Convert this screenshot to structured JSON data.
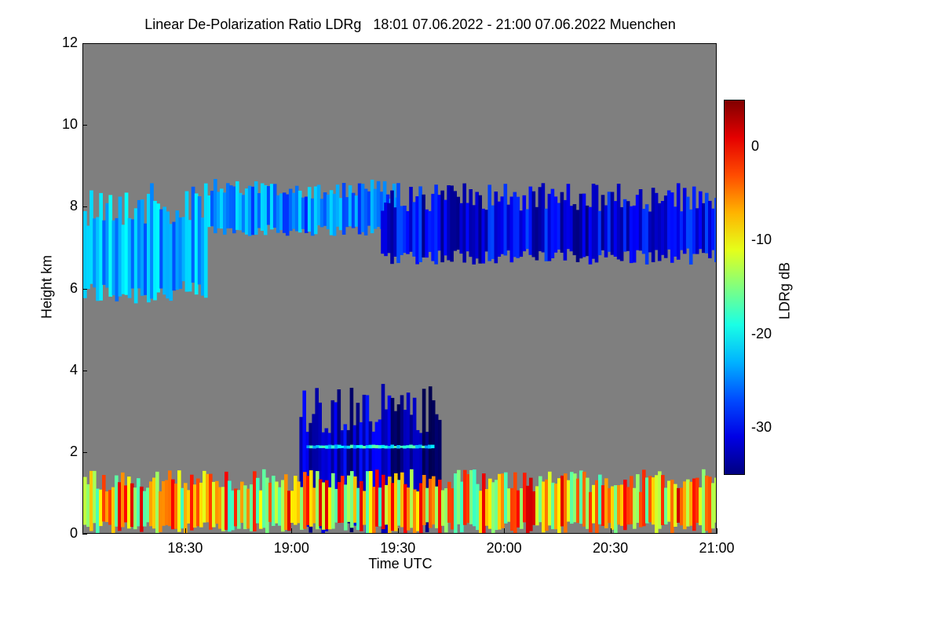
{
  "title": "Linear De-Polarization Ratio LDRg   18:01 07.06.2022 - 21:00 07.06.2022 Muenchen",
  "chart_data": {
    "type": "heatmap",
    "title": "Linear De-Polarization Ratio LDRg   18:01 07.06.2022 - 21:00 07.06.2022 Muenchen",
    "xlabel": "Time UTC",
    "ylabel": "Height km",
    "colorbar_label": "LDRg dB",
    "x_range": [
      "18:01",
      "21:00"
    ],
    "x_ticks": [
      "18:30",
      "19:00",
      "19:30",
      "20:00",
      "20:30",
      "21:00"
    ],
    "y_range": [
      0,
      12
    ],
    "y_ticks": [
      "0",
      "2",
      "4",
      "6",
      "8",
      "10",
      "12"
    ],
    "colorbar_range": [
      -35,
      5
    ],
    "colorbar_ticks": [
      "0",
      "-10",
      "-20",
      "-30"
    ],
    "colormap": "jet",
    "background_color": "#7f7f7f",
    "features": [
      {
        "description": "cirrus cloud",
        "time": [
          "18:01",
          "18:36"
        ],
        "height_km": [
          5.6,
          8.6
        ],
        "ldr_db": -23
      },
      {
        "description": "cirrus cloud",
        "time": [
          "18:36",
          "19:30"
        ],
        "height_km": [
          7.3,
          8.7
        ],
        "ldr_db": -25
      },
      {
        "description": "cirrus cloud",
        "time": [
          "19:25",
          "21:00"
        ],
        "height_km": [
          6.6,
          8.6
        ],
        "ldr_db": -31
      },
      {
        "description": "convective cloud",
        "time": [
          "19:02",
          "19:42"
        ],
        "height_km": [
          0,
          3.7
        ],
        "ldr_db": -33
      },
      {
        "description": "melting layer",
        "time": [
          "19:04",
          "19:40"
        ],
        "height_km": [
          2.1,
          2.2
        ],
        "ldr_db": -20
      },
      {
        "description": "boundary layer",
        "time": [
          "18:01",
          "21:00"
        ],
        "height_km": [
          0,
          1.6
        ],
        "ldr_db": -8
      }
    ]
  }
}
